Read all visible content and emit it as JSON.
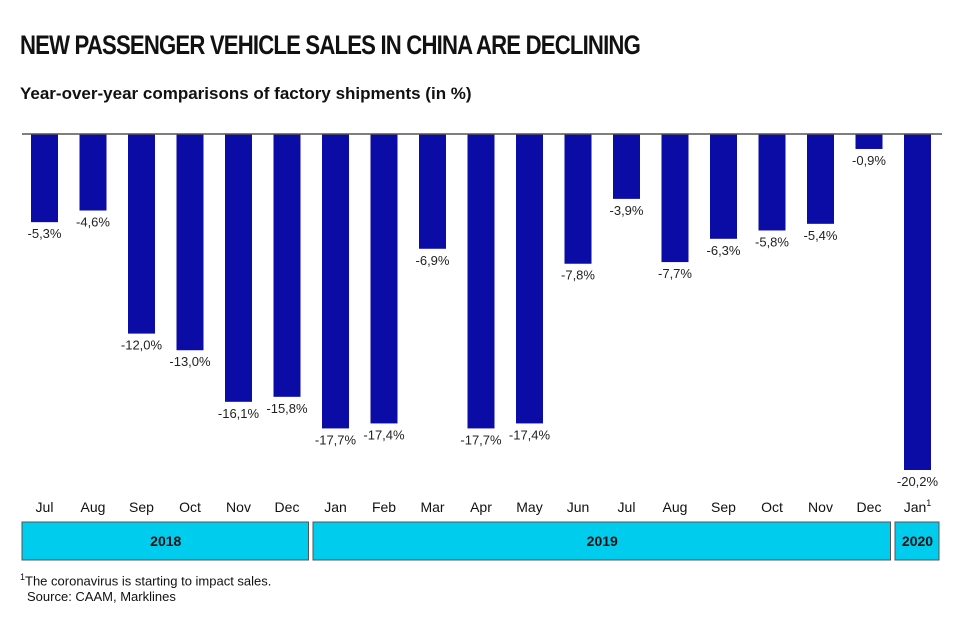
{
  "title": "NEW PASSENGER VEHICLE SALES IN CHINA ARE DECLINING",
  "subtitle": "Year-over-year comparisons of factory shipments (in %)",
  "footnote_mark": "1",
  "footnote": "The coronavirus is starting to impact sales.",
  "source": "Source: CAAM, Marklines",
  "colors": {
    "bar": "#0b0ba6",
    "year_box": "#00cdee",
    "axis": "#555555"
  },
  "chart_data": {
    "type": "bar",
    "title": "NEW PASSENGER VEHICLE SALES IN CHINA ARE DECLINING",
    "subtitle": "Year-over-year comparisons of factory shipments (in %)",
    "categories": [
      "Jul",
      "Aug",
      "Sep",
      "Oct",
      "Nov",
      "Dec",
      "Jan",
      "Feb",
      "Mar",
      "Apr",
      "May",
      "Jun",
      "Jul",
      "Aug",
      "Sep",
      "Oct",
      "Nov",
      "Dec",
      "Jan"
    ],
    "category_superscripts": {
      "18": "1"
    },
    "values": [
      -5.3,
      -4.6,
      -12.0,
      -13.0,
      -16.1,
      -15.8,
      -17.7,
      -17.4,
      -6.9,
      -17.7,
      -17.4,
      -7.8,
      -3.9,
      -7.7,
      -6.3,
      -5.8,
      -5.4,
      -0.9,
      -20.2
    ],
    "data_labels": [
      "-5,3%",
      "-4,6%",
      "-12,0%",
      "-13,0%",
      "-16,1%",
      "-15,8%",
      "-17,7%",
      "-17,4%",
      "-6,9%",
      "-17,7%",
      "-17,4%",
      "-7,8%",
      "-3,9%",
      "-7,7%",
      "-6,3%",
      "-5,8%",
      "-5,4%",
      "-0,9%",
      "-20,2%"
    ],
    "year_groups": [
      {
        "label": "2018",
        "start": 0,
        "end": 5
      },
      {
        "label": "2019",
        "start": 6,
        "end": 17
      },
      {
        "label": "2020",
        "start": 18,
        "end": 18
      }
    ],
    "ylim": [
      -20.2,
      0
    ],
    "grid": false,
    "xlabel": "",
    "ylabel": ""
  }
}
